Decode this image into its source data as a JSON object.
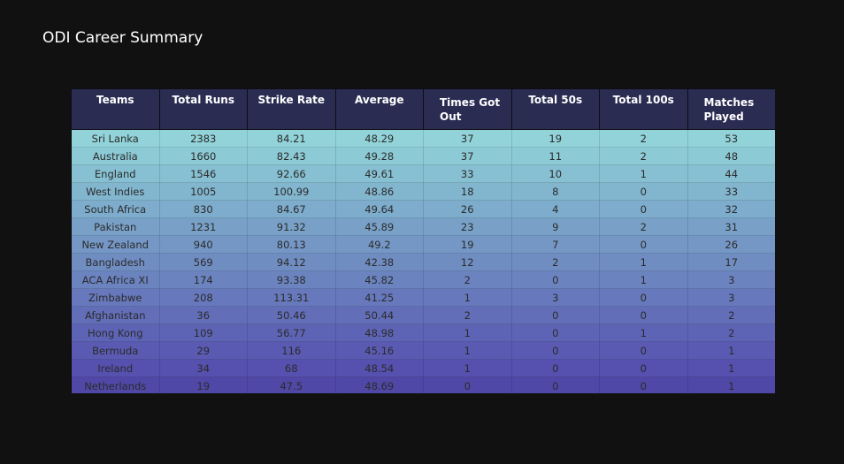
{
  "chart_data": {
    "type": "table",
    "title": "ODI Career Summary",
    "columns": [
      "Teams",
      "Total Runs",
      "Strike Rate",
      "Average",
      "Times Got Out",
      "Total 50s",
      "Total 100s",
      "Matches Played"
    ],
    "header_color": "#2a2c52",
    "rows": [
      [
        "Sri Lanka",
        "2383",
        "84.21",
        "48.29",
        "37",
        "19",
        "2",
        "53"
      ],
      [
        "Australia",
        "1660",
        "82.43",
        "49.28",
        "37",
        "11",
        "2",
        "48"
      ],
      [
        "England",
        "1546",
        "92.66",
        "49.61",
        "33",
        "10",
        "1",
        "44"
      ],
      [
        "West Indies",
        "1005",
        "100.99",
        "48.86",
        "18",
        "8",
        "0",
        "33"
      ],
      [
        "South Africa",
        "830",
        "84.67",
        "49.64",
        "26",
        "4",
        "0",
        "32"
      ],
      [
        "Pakistan",
        "1231",
        "91.32",
        "45.89",
        "23",
        "9",
        "2",
        "31"
      ],
      [
        "New Zealand",
        "940",
        "80.13",
        "49.2",
        "19",
        "7",
        "0",
        "26"
      ],
      [
        "Bangladesh",
        "569",
        "94.12",
        "42.38",
        "12",
        "2",
        "1",
        "17"
      ],
      [
        "ACA Africa XI",
        "174",
        "93.38",
        "45.82",
        "2",
        "0",
        "1",
        "3"
      ],
      [
        "Zimbabwe",
        "208",
        "113.31",
        "41.25",
        "1",
        "3",
        "0",
        "3"
      ],
      [
        "Afghanistan",
        "36",
        "50.46",
        "50.44",
        "2",
        "0",
        "0",
        "2"
      ],
      [
        "Hong Kong",
        "109",
        "56.77",
        "48.98",
        "1",
        "0",
        "1",
        "2"
      ],
      [
        "Bermuda",
        "29",
        "116",
        "45.16",
        "1",
        "0",
        "0",
        "1"
      ],
      [
        "Ireland",
        "34",
        "68",
        "48.54",
        "1",
        "0",
        "0",
        "1"
      ],
      [
        "Netherlands",
        "19",
        "47.5",
        "48.69",
        "0",
        "0",
        "0",
        "1"
      ]
    ],
    "row_colors": [
      "#91d3d9",
      "#8ccad5",
      "#87c0d2",
      "#82b6cf",
      "#7eaccc",
      "#79a1c8",
      "#7597c5",
      "#708dc2",
      "#6b83bf",
      "#6779bc",
      "#626eb8",
      "#5e64b5",
      "#5a5ab2",
      "#5650ae",
      "#4f48a6"
    ]
  }
}
